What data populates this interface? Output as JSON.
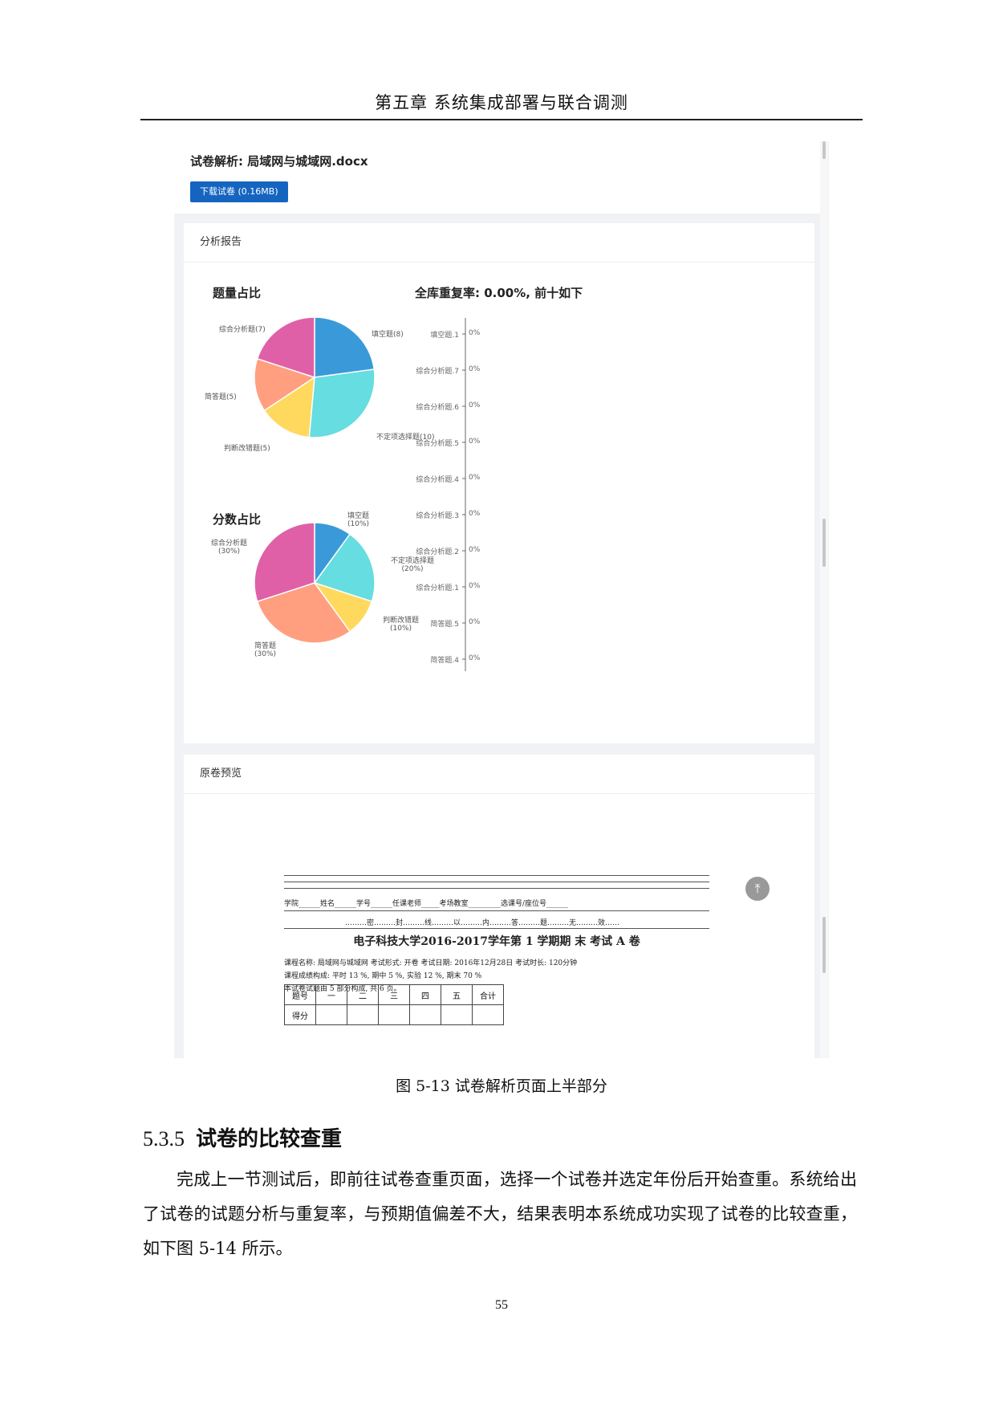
{
  "chapter_header": "第五章 系统集成部署与联合调测",
  "screenshot": {
    "parse_title": "试卷解析: 局域网与城域网.docx",
    "download_button": "下载试卷 (0.16MB)",
    "report_card_title": "分析报告",
    "preview_card_title": "原卷预览"
  },
  "chart_data": [
    {
      "type": "pie",
      "title": "题量占比",
      "labels": [
        "填空题(8)",
        "不定项选择题(10)",
        "判断改错题(5)",
        "简答题(5)",
        "综合分析题(7)"
      ],
      "values": [
        8,
        10,
        5,
        5,
        7
      ],
      "colors": [
        "#3a9ad9",
        "#66dde0",
        "#ffd95e",
        "#ff9f80",
        "#e060a8"
      ]
    },
    {
      "type": "pie",
      "title": "分数占比",
      "labels": [
        "填空题\n(10%)",
        "不定项选择题\n(20%)",
        "判断改错题\n(10%)",
        "简答题\n(30%)",
        "综合分析题\n(30%)"
      ],
      "values": [
        10,
        20,
        10,
        30,
        30
      ],
      "colors": [
        "#3a9ad9",
        "#66dde0",
        "#ffd95e",
        "#ff9f80",
        "#e060a8"
      ]
    },
    {
      "type": "bar",
      "orientation": "horizontal",
      "title": "全库重复率: 0.00%, 前十如下",
      "categories": [
        "填空题.1",
        "综合分析题.7",
        "综合分析题.6",
        "综合分析题.5",
        "综合分析题.4",
        "综合分析题.3",
        "综合分析题.2",
        "综合分析题.1",
        "简答题.5",
        "简答题.4"
      ],
      "values": [
        0,
        0,
        0,
        0,
        0,
        0,
        0,
        0,
        0,
        0
      ],
      "value_labels": [
        "0%",
        "0%",
        "0%",
        "0%",
        "0%",
        "0%",
        "0%",
        "0%",
        "0%",
        "0%"
      ]
    }
  ],
  "exam_sheet": {
    "info_line": "学院______姓名______学号______任课老师_____考场教室_________选课号/座位号______",
    "seal_line": "………密………封………线………以………内………答………题………无………效……",
    "title": "电子科技大学2016-2017学年第 1 学期期 末 考试 A 卷",
    "course_line": "课程名称: 局域网与城域网 考试形式: 开卷 考试日期: 2016年12月28日 考试时长: 120分钟",
    "score_line": "课程成绩构成: 平时 13 %, 期中 5 %, 实验 12 %, 期末 70 %",
    "parts_line": "本试卷试题由 5 部分构成, 共 6 页。",
    "table_header": [
      "题号",
      "一",
      "二",
      "三",
      "四",
      "五",
      "合计"
    ],
    "table_row_label": "得分",
    "back_top_icon": "⤒"
  },
  "figure_caption": "图 5-13 试卷解析页面上半部分",
  "section": {
    "number": "5.3.5",
    "title": "试卷的比较查重"
  },
  "body_text": "完成上一节测试后，即前往试卷查重页面，选择一个试卷并选定年份后开始查重。系统给出了试卷的试题分析与重复率，与预期值偏差不大，结果表明本系统成功实现了试卷的比较查重，如下图 5-14 所示。",
  "page_number": "55"
}
